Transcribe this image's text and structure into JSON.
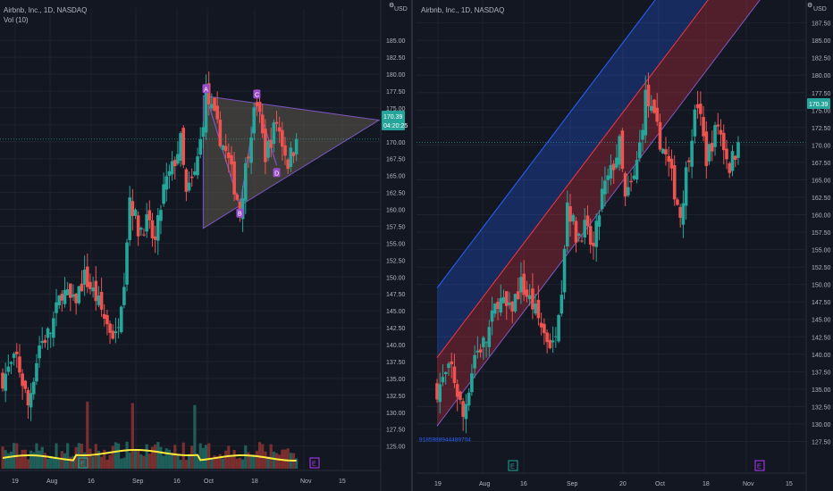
{
  "left_pane": {
    "title": "Airbnb, Inc., 1D, NASDAQ",
    "volume_label": "Vol (10)",
    "currency": "USD",
    "gear_icon": "gear-icon",
    "price_badge": "170.39",
    "countdown_badge": "04:20:25",
    "earnings_marker": "E"
  },
  "right_pane": {
    "title": "Airbnb, Inc., 1D, NASDAQ",
    "currency": "USD",
    "gear_icon": "gear-icon",
    "price_badge": "170.39",
    "channel_label": "9185988944489704",
    "earnings_marker": "E"
  },
  "colors": {
    "background": "#131722",
    "up": "#26a69a",
    "down": "#ef5350",
    "volume_ma": "#ffeb3b",
    "pattern_fill": "#8a7f63",
    "pattern_line": "#7e57c2",
    "channel_upper": "#2962ff",
    "channel_lower": "#f23645",
    "badge": "#26a69a",
    "earnings": "#b03aff"
  },
  "chart_data": [
    {
      "type": "candlestick",
      "title": "Airbnb, Inc., 1D, NASDAQ",
      "ylim": [
        123.5,
        187
      ],
      "y_ticks": [
        125,
        127.5,
        130,
        132.5,
        135,
        137.5,
        140,
        142.5,
        145,
        147.5,
        150,
        152.5,
        155,
        157.5,
        160,
        162.5,
        165,
        167.5,
        170,
        172.5,
        175,
        177.5,
        180,
        182.5,
        185
      ],
      "x_ticks": [
        "19",
        "Aug",
        "16",
        "Sep",
        "16",
        "Oct",
        "18",
        "Nov",
        "15"
      ],
      "last_price": 170.39,
      "pattern": {
        "name": "ABCD triangle",
        "points": [
          {
            "label": "A",
            "price": 176.8
          },
          {
            "label": "B",
            "price": 160.5
          },
          {
            "label": "C",
            "price": 176.0
          },
          {
            "label": "D",
            "price": 166.5
          }
        ]
      },
      "volume_series": {
        "name": "Vol (10)"
      }
    },
    {
      "type": "candlestick",
      "title": "Airbnb, Inc., 1D, NASDAQ",
      "ylim": [
        125,
        189.5
      ],
      "y_ticks": [
        127.5,
        130,
        132.5,
        135,
        137.5,
        140,
        142.5,
        145,
        147.5,
        150,
        152.5,
        155,
        157.5,
        160,
        162.5,
        165,
        167.5,
        170,
        172.5,
        175,
        177.5,
        180,
        182.5,
        185,
        187.5
      ],
      "x_ticks": [
        "19",
        "Aug",
        "16",
        "Sep",
        "20",
        "Oct",
        "18",
        "Nov",
        "15"
      ],
      "last_price": 170.39,
      "channel": {
        "type": "regression trend channel",
        "label": "9185988944489704",
        "start": {
          "x": "19",
          "upper": 149.5,
          "mid": 139.5,
          "lower": 129.7
        },
        "end_slope_per_bar": 0.548
      }
    }
  ]
}
